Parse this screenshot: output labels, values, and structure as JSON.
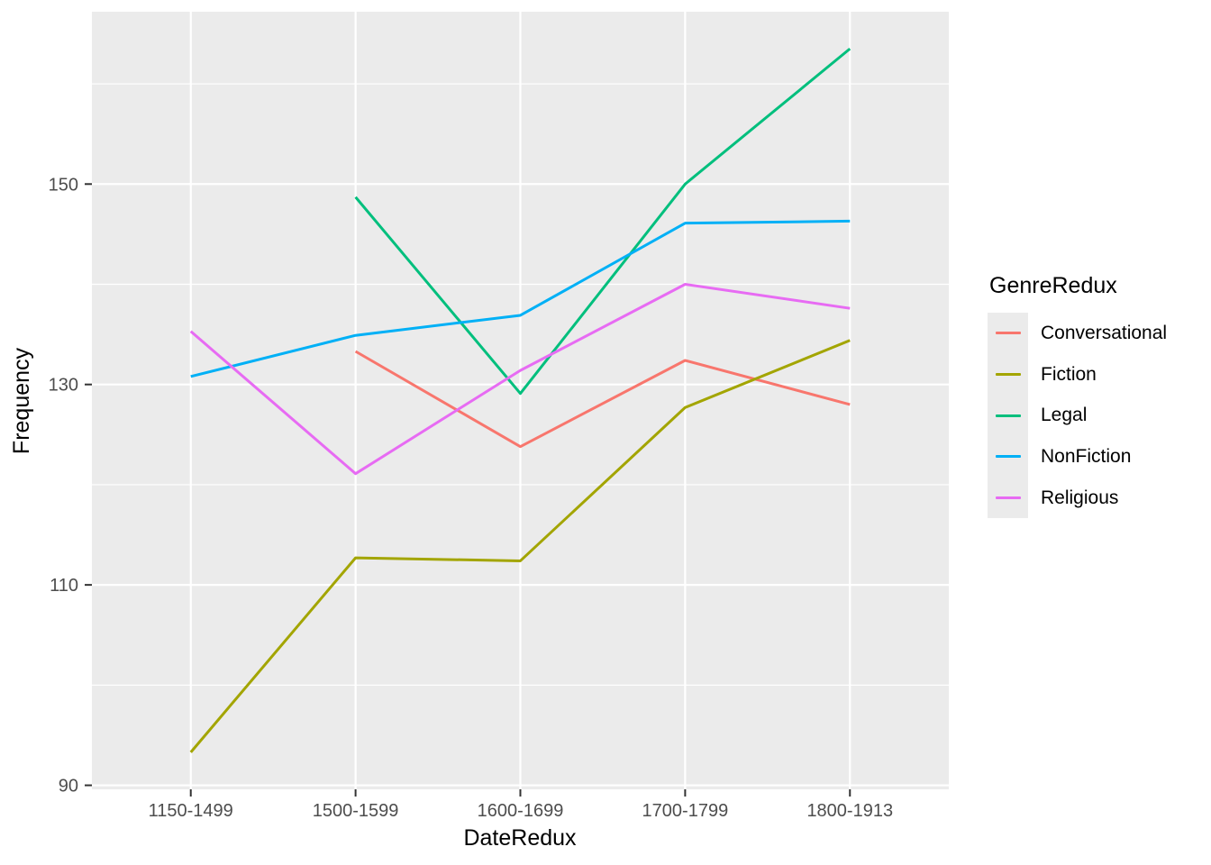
{
  "chart_data": {
    "type": "line",
    "title": "",
    "xlabel": "DateRedux",
    "ylabel": "Frequency",
    "categories": [
      "1150-1499",
      "1500-1599",
      "1600-1699",
      "1700-1799",
      "1800-1913"
    ],
    "y_ticks": [
      90,
      110,
      130,
      150
    ],
    "y_minor_gridlines": [
      100,
      120,
      140,
      160
    ],
    "ylim": [
      89.6,
      167.2
    ],
    "grid": "on",
    "legend_title": "GenreRedux",
    "legend_position": "right",
    "series": [
      {
        "name": "Conversational",
        "color": "#F8766D",
        "values": [
          null,
          133.3,
          123.8,
          132.4,
          128.0
        ]
      },
      {
        "name": "Fiction",
        "color": "#A3A500",
        "values": [
          93.3,
          112.7,
          112.4,
          127.7,
          134.4
        ]
      },
      {
        "name": "Legal",
        "color": "#00BF7D",
        "values": [
          null,
          148.7,
          129.1,
          150.0,
          163.5
        ]
      },
      {
        "name": "NonFiction",
        "color": "#00B0F6",
        "values": [
          130.8,
          134.9,
          136.9,
          146.1,
          146.3
        ]
      },
      {
        "name": "Religious",
        "color": "#E76BF3",
        "values": [
          135.3,
          121.1,
          131.4,
          140.0,
          137.6
        ]
      }
    ]
  },
  "colors": {
    "panel_background": "#ebebeb",
    "gridline": "#ffffff",
    "tick_mark": "#333333",
    "tick_label": "#4d4d4d",
    "axis_title": "#000000",
    "figure_background": "#ffffff"
  }
}
